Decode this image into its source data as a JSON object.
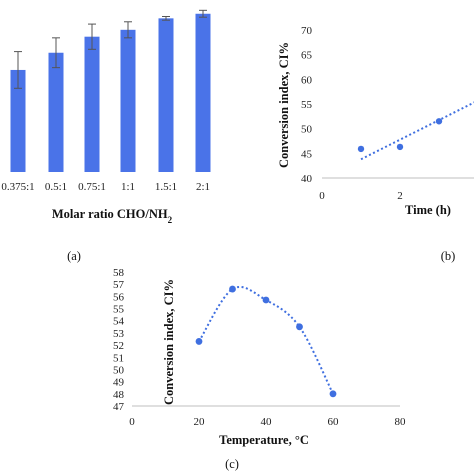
{
  "chart_data": [
    {
      "panel": "(a)",
      "type": "bar",
      "categories": [
        "0.375:1",
        "0.5:1",
        "0.75:1",
        "1:1",
        "1.5:1",
        "2:1"
      ],
      "values": [
        44.5,
        52,
        59,
        62,
        67,
        69
      ],
      "errors": [
        8,
        6.5,
        5.5,
        3.5,
        0.8,
        1.5
      ],
      "xlabel": "Molar ratio CHO/NH2",
      "ylabel": "",
      "ylim": [
        0,
        75
      ],
      "color": "#4a73e8"
    },
    {
      "panel": "(b)",
      "type": "scatter",
      "points": [
        {
          "x": 1,
          "y": 45.9
        },
        {
          "x": 2,
          "y": 46.3
        },
        {
          "x": 3,
          "y": 51.5
        }
      ],
      "trendline": {
        "kind": "linear",
        "x_range": [
          1,
          4.2
        ],
        "from_y": 43.8,
        "to_y": 56.5
      },
      "xlabel": "Time (h)",
      "ylabel": "Conversion index, CI%",
      "xticks": [
        "0",
        "2"
      ],
      "xlim": [
        0,
        4.2
      ],
      "ylim": [
        40,
        70
      ],
      "yticks": [
        "40",
        "45",
        "50",
        "55",
        "60",
        "65",
        "70"
      ],
      "color": "#3f6fe0"
    },
    {
      "panel": "(c)",
      "type": "scatter",
      "points": [
        {
          "x": 20,
          "y": 52.3
        },
        {
          "x": 30,
          "y": 56.6
        },
        {
          "x": 40,
          "y": 55.7
        },
        {
          "x": 50,
          "y": 53.5
        },
        {
          "x": 60,
          "y": 48
        }
      ],
      "trendline": {
        "kind": "polynomial"
      },
      "xlabel": "Temperature, °C",
      "ylabel": "Conversion index, CI%",
      "xticks": [
        "0",
        "20",
        "40",
        "60",
        "80"
      ],
      "xlim": [
        0,
        80
      ],
      "ylim": [
        47,
        58
      ],
      "yticks": [
        "47",
        "48",
        "49",
        "50",
        "51",
        "52",
        "53",
        "54",
        "55",
        "56",
        "57",
        "58"
      ],
      "color": "#3f6fe0"
    }
  ]
}
